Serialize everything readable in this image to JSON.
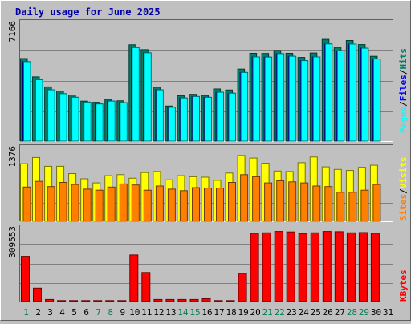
{
  "chart_data": {
    "type": "bar",
    "title": "Daily usage for June 2025",
    "categories": [
      "1",
      "2",
      "3",
      "4",
      "5",
      "6",
      "7",
      "8",
      "9",
      "10",
      "11",
      "12",
      "13",
      "14",
      "15",
      "16",
      "17",
      "18",
      "19",
      "20",
      "21",
      "22",
      "23",
      "24",
      "25",
      "26",
      "27",
      "28",
      "29",
      "30",
      "31"
    ],
    "weekend_days": [
      "1",
      "7",
      "8",
      "14",
      "15",
      "21",
      "22",
      "28",
      "29"
    ],
    "panels": [
      {
        "id": "hits-files-pages",
        "ymax_label": "7166",
        "ymax": 7166,
        "series": [
          {
            "name": "Hits",
            "color": "#00806b",
            "values": [
              5090,
              3960,
              3340,
              3080,
              2840,
              2460,
              2390,
              2570,
              2480,
              5940,
              5640,
              3320,
              2160,
              2800,
              2880,
              2810,
              3210,
              3150,
              4440,
              5410,
              5400,
              5590,
              5410,
              5160,
              5430,
              6270,
              5780,
              6200,
              5950,
              5230,
              0
            ]
          },
          {
            "name": "Files",
            "color": "#0000ff",
            "values": [
              4900,
              3780,
              3160,
              2920,
              2700,
              2400,
              2290,
              2460,
              2370,
              5760,
              5440,
              3160,
              2080,
              2660,
              2750,
              2700,
              3010,
              2950,
              4230,
              5190,
              5180,
              5390,
              5230,
              4960,
              5190,
              5990,
              5560,
              5980,
              5730,
              5060,
              0
            ]
          },
          {
            "name": "Pages",
            "color": "#00ffff",
            "values": [
              4900,
              3780,
              3160,
              2920,
              2700,
              2400,
              2290,
              2460,
              2370,
              5760,
              5440,
              3160,
              2080,
              2660,
              2750,
              2700,
              3010,
              2950,
              4230,
              5190,
              5180,
              5390,
              5230,
              4960,
              5190,
              5990,
              5560,
              5980,
              5730,
              5060,
              0
            ]
          }
        ]
      },
      {
        "id": "visits-sites",
        "ymax_label": "1376",
        "ymax": 1376,
        "series": [
          {
            "name": "Visits",
            "color": "#ffff00",
            "values": [
              1110,
              1230,
              1060,
              1060,
              920,
              820,
              740,
              880,
              900,
              830,
              940,
              960,
              800,
              880,
              860,
              850,
              790,
              930,
              1270,
              1220,
              1120,
              970,
              960,
              1130,
              1240,
              1050,
              1000,
              980,
              1040,
              1080,
              0
            ]
          },
          {
            "name": "Sites",
            "color": "#ff8000",
            "values": [
              660,
              770,
              670,
              750,
              710,
              620,
              600,
              660,
              720,
              700,
              600,
              680,
              620,
              590,
              650,
              640,
              640,
              750,
              900,
              860,
              740,
              780,
              760,
              740,
              680,
              670,
              560,
              560,
              600,
              710,
              0
            ]
          }
        ]
      },
      {
        "id": "kbytes",
        "ymax_label": "309553",
        "ymax": 309553,
        "series": [
          {
            "name": "KBytes",
            "color": "#ff0000",
            "values": [
              196000,
              58000,
              9000,
              4000,
              4000,
              4000,
              4000,
              4000,
              4000,
              202000,
              126000,
              9000,
              9000,
              9000,
              9000,
              12000,
              4000,
              4000,
              122000,
              296000,
              298000,
              304000,
              302000,
              295000,
              298000,
              304000,
              303000,
              298000,
              299000,
              296000,
              0
            ]
          }
        ]
      }
    ],
    "legend_separator": "/"
  }
}
